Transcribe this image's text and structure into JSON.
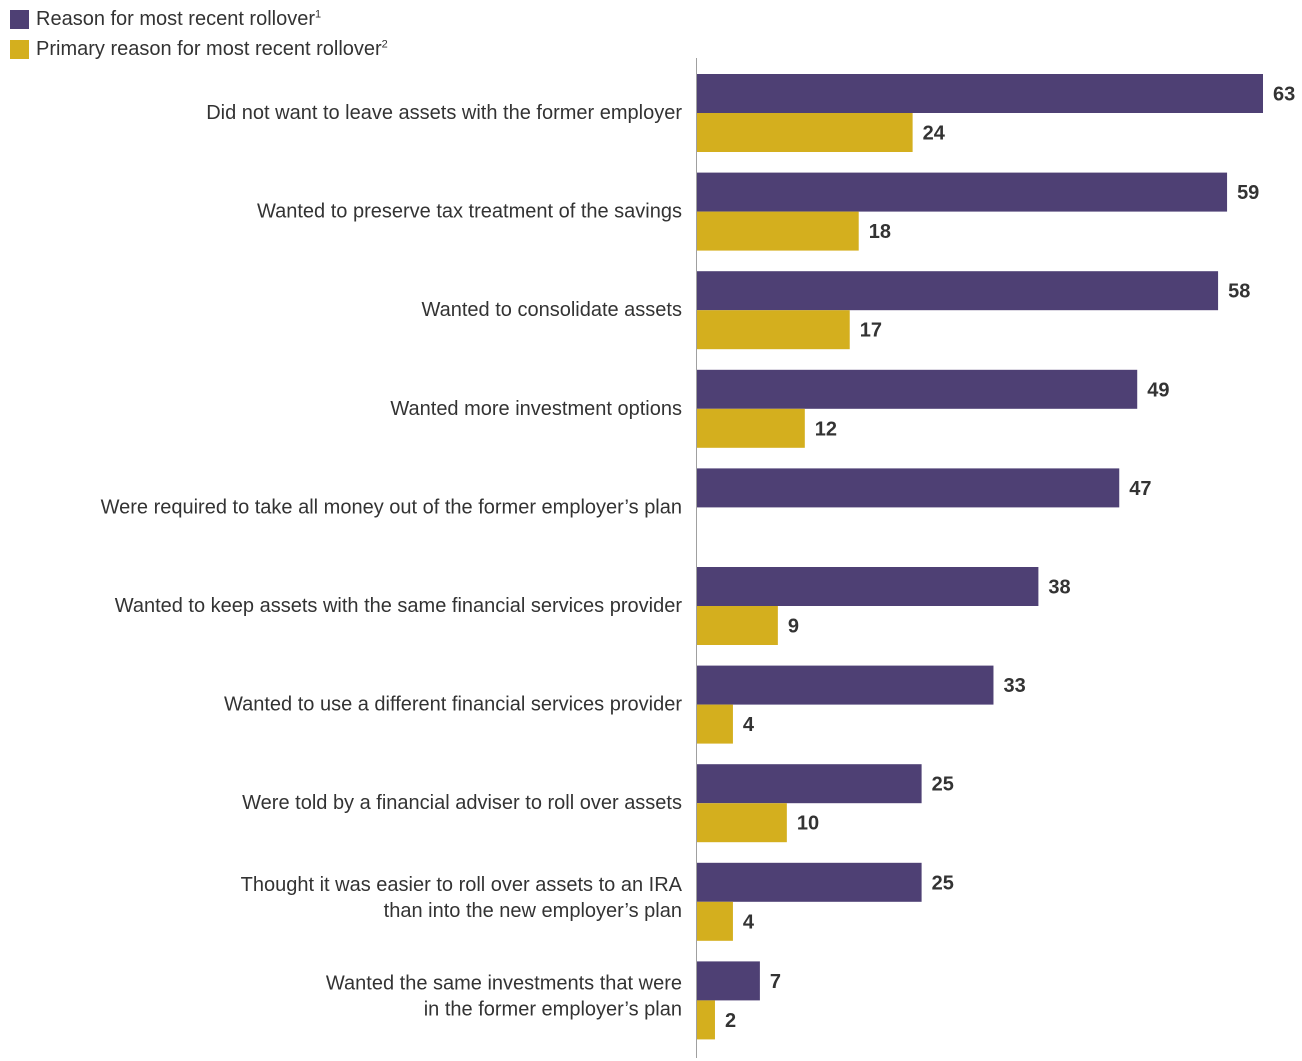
{
  "colors": {
    "series_reason": "#4e4074",
    "series_primary": "#d4af1e",
    "axis": "#a0a0a0",
    "category_text": "#333333",
    "value_text": "#333333"
  },
  "legend": {
    "items": [
      {
        "label": "Reason for most recent rollover",
        "footnote": "1"
      },
      {
        "label": "Primary reason for most recent rollover",
        "footnote": "2"
      }
    ]
  },
  "chart_data": {
    "type": "bar",
    "orientation": "horizontal",
    "legend_position": "top-left",
    "grid": false,
    "xlim": [
      0,
      63
    ],
    "categories": [
      [
        "Did not want to leave assets with the former employer"
      ],
      [
        "Wanted to preserve tax treatment of the savings"
      ],
      [
        "Wanted to consolidate assets"
      ],
      [
        "Wanted more investment options"
      ],
      [
        "Were required to take all money out of the former employer’s plan"
      ],
      [
        "Wanted to keep assets with the same financial services provider"
      ],
      [
        "Wanted to use a different financial services provider"
      ],
      [
        "Were told by a financial adviser to roll over assets"
      ],
      [
        "Thought it was easier to roll over assets to an IRA",
        "than into the new employer’s plan"
      ],
      [
        "Wanted the same investments that were",
        "in the former employer’s plan"
      ]
    ],
    "series": [
      {
        "name": "Reason for most recent rollover",
        "values": [
          63,
          59,
          58,
          49,
          47,
          38,
          33,
          25,
          25,
          7
        ]
      },
      {
        "name": "Primary reason for most recent rollover",
        "values": [
          24,
          18,
          17,
          12,
          null,
          9,
          4,
          10,
          4,
          2
        ]
      }
    ]
  }
}
